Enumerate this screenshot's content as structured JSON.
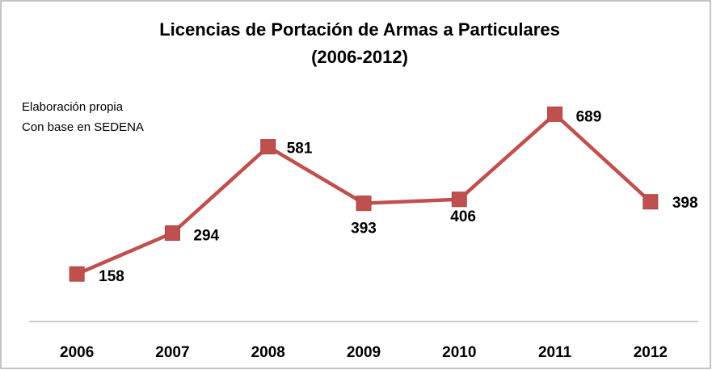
{
  "chart_data": {
    "type": "line",
    "title": [
      "Licencias de Portación de Armas a Particulares",
      "(2006-2012)"
    ],
    "annotation": [
      "Elaboración propia",
      "Con base en SEDENA"
    ],
    "categories": [
      "2006",
      "2007",
      "2008",
      "2009",
      "2010",
      "2011",
      "2012"
    ],
    "series": [
      {
        "name": "Licencias",
        "color": "#c0504d",
        "values": [
          158,
          294,
          581,
          393,
          406,
          689,
          398
        ]
      }
    ],
    "ylim": [
      0,
      800
    ]
  }
}
